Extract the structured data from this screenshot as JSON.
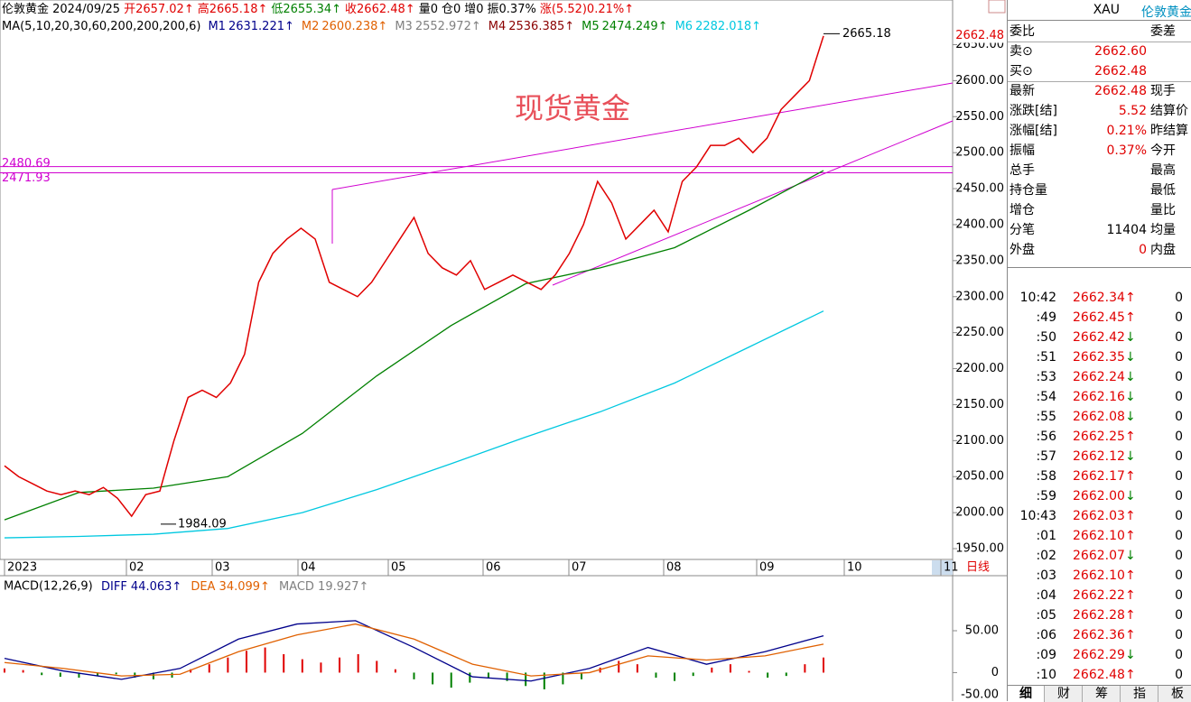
{
  "top_bar": [
    {
      "text": "伦敦黄金 2024/09/25",
      "color": "#000"
    },
    {
      "text": "开2657.02↑",
      "color": "#e00000"
    },
    {
      "text": "高2665.18↑",
      "color": "#e00000"
    },
    {
      "text": "低2655.34↑",
      "color": "#008000"
    },
    {
      "text": "收2662.48↑",
      "color": "#e00000"
    },
    {
      "text": "量0",
      "color": "#000"
    },
    {
      "text": "仓0",
      "color": "#000"
    },
    {
      "text": "增0",
      "color": "#000"
    },
    {
      "text": "振0.37%",
      "color": "#000"
    },
    {
      "text": "涨(5.52)0.21%↑",
      "color": "#e00000"
    }
  ],
  "chart_data": {
    "type": "line",
    "title": "现货黄金",
    "ma_label": "MA(5,10,20,30,60,200,200,200,6)",
    "ma": [
      {
        "name": "M1",
        "label": "2631.221↑",
        "color": "#00008b"
      },
      {
        "name": "M2",
        "label": "2600.238↑",
        "color": "#e06000"
      },
      {
        "name": "M3",
        "label": "2552.972↑",
        "color": "#808080"
      },
      {
        "name": "M4",
        "label": "2536.385↑",
        "color": "#8b0000"
      },
      {
        "name": "M5",
        "label": "2474.249↑",
        "color": "#008000",
        "values": [
          1990,
          2028,
          2034,
          2050,
          2110,
          2190,
          2260,
          2318,
          2340,
          2368,
          2420,
          2475
        ]
      },
      {
        "name": "M6",
        "label": "2282.018↑",
        "color": "#00c8e0",
        "values": [
          1965,
          1967,
          1970,
          1978,
          2000,
          2032,
          2068,
          2105,
          2140,
          2180,
          2230,
          2280
        ]
      }
    ],
    "price": {
      "color": "#e00000",
      "values": [
        2065,
        2050,
        2040,
        2030,
        2025,
        2030,
        2025,
        2035,
        2020,
        1995,
        2025,
        2030,
        2100,
        2160,
        2170,
        2160,
        2180,
        2220,
        2320,
        2360,
        2380,
        2395,
        2380,
        2320,
        2310,
        2300,
        2320,
        2350,
        2380,
        2410,
        2360,
        2340,
        2330,
        2350,
        2310,
        2320,
        2330,
        2320,
        2310,
        2330,
        2360,
        2400,
        2460,
        2430,
        2380,
        2400,
        2420,
        2390,
        2460,
        2480,
        2510,
        2510,
        2520,
        2500,
        2520,
        2560,
        2580,
        2600,
        2662
      ]
    },
    "ylim": [
      1935,
      2712
    ],
    "yticks": [
      {
        "value": 1950,
        "label": "1950.00"
      },
      {
        "value": 2000,
        "label": "2000.00"
      },
      {
        "value": 2050,
        "label": "2050.00"
      },
      {
        "value": 2100,
        "label": "2100.00"
      },
      {
        "value": 2150,
        "label": "2150.00"
      },
      {
        "value": 2200,
        "label": "2200.00"
      },
      {
        "value": 2250,
        "label": "2250.00"
      },
      {
        "value": 2300,
        "label": "2300.00"
      },
      {
        "value": 2350,
        "label": "2350.00"
      },
      {
        "value": 2400,
        "label": "2400.00"
      },
      {
        "value": 2450,
        "label": "2450.00"
      },
      {
        "value": 2500,
        "label": "2500.00"
      },
      {
        "value": 2550,
        "label": "2550.00"
      },
      {
        "value": 2600,
        "label": "2600.00"
      },
      {
        "value": 2650,
        "label": "2650.00"
      }
    ],
    "last_price": {
      "value": 2662.48,
      "label": "2662.48"
    },
    "hlines": [
      {
        "value": 2480.69,
        "label": "2480.69"
      },
      {
        "value": 2471.93,
        "label": "2471.93"
      }
    ],
    "high_note": {
      "value": 2665.18,
      "label": "2665.18"
    },
    "low_note": {
      "value": 1984.09,
      "label": "1984.09"
    },
    "categories": [
      "2023",
      "02",
      "03",
      "04",
      "05",
      "06",
      "07",
      "08",
      "09",
      "10",
      "11"
    ],
    "period": "日线"
  },
  "macd": {
    "label": "MACD(12,26,9)",
    "legend": [
      {
        "text": "DIFF 44.063↑",
        "color": "#00008b"
      },
      {
        "text": "DEA 34.099↑",
        "color": "#e06000"
      },
      {
        "text": "MACD 19.927↑",
        "color": "#808080"
      }
    ],
    "ylim": [
      -34,
      92
    ],
    "yticks": [
      {
        "value": 50,
        "label": "50.00"
      },
      {
        "value": 0,
        "label": "0"
      },
      {
        "value": -50,
        "label": "-50.00"
      }
    ],
    "up_color": "#e00000",
    "down_color": "#008000",
    "hist": [
      5,
      3,
      -3,
      -5,
      -6,
      -4,
      -2,
      -6,
      -8,
      -6,
      4,
      10,
      18,
      26,
      30,
      22,
      16,
      12,
      18,
      22,
      14,
      4,
      -8,
      -14,
      -18,
      -12,
      -6,
      -10,
      -16,
      -20,
      -14,
      -8,
      6,
      14,
      10,
      -6,
      -10,
      -4,
      6,
      10,
      2,
      -6,
      -4,
      10,
      18
    ],
    "diff": [
      17,
      2,
      -8,
      5,
      40,
      58,
      62,
      30,
      -5,
      -10,
      5,
      30,
      10,
      25,
      44
    ],
    "dea": [
      12,
      5,
      -4,
      -2,
      25,
      45,
      58,
      40,
      10,
      -4,
      0,
      20,
      15,
      20,
      34
    ]
  },
  "panel": {
    "symbol": "XAU",
    "name": "伦敦黄金",
    "rows": [
      [
        "委比",
        "",
        "委差"
      ],
      [
        "卖⊙",
        "2662.60",
        ""
      ],
      [
        "买⊙",
        "2662.48",
        ""
      ],
      [
        "最新",
        "2662.48",
        "现手"
      ],
      [
        "涨跌[结]",
        "5.52",
        "结算价"
      ],
      [
        "涨幅[结]",
        "0.21%",
        "昨结算"
      ],
      [
        "振幅",
        "0.37%",
        "今开"
      ],
      [
        "总手",
        "",
        "最高"
      ],
      [
        "持仓量",
        "",
        "最低"
      ],
      [
        "增仓",
        "",
        "量比"
      ],
      [
        "分笔",
        "11404",
        "均量"
      ],
      [
        "外盘",
        "0",
        "内盘"
      ]
    ],
    "ticks": [
      [
        "10:42",
        "2662.34",
        "↑",
        0
      ],
      [
        ":49",
        "2662.45",
        "↑",
        0
      ],
      [
        ":50",
        "2662.42",
        "↓",
        0
      ],
      [
        ":51",
        "2662.35",
        "↓",
        0
      ],
      [
        ":53",
        "2662.24",
        "↓",
        0
      ],
      [
        ":54",
        "2662.16",
        "↓",
        0
      ],
      [
        ":55",
        "2662.08",
        "↓",
        0
      ],
      [
        ":56",
        "2662.25",
        "↑",
        0
      ],
      [
        ":57",
        "2662.12",
        "↓",
        0
      ],
      [
        ":58",
        "2662.17",
        "↑",
        0
      ],
      [
        ":59",
        "2662.00",
        "↓",
        0
      ],
      [
        "10:43",
        "2662.03",
        "↑",
        0
      ],
      [
        ":01",
        "2662.10",
        "↑",
        0
      ],
      [
        ":02",
        "2662.07",
        "↓",
        0
      ],
      [
        ":03",
        "2662.10",
        "↑",
        0
      ],
      [
        ":04",
        "2662.22",
        "↑",
        0
      ],
      [
        ":05",
        "2662.28",
        "↑",
        0
      ],
      [
        ":06",
        "2662.36",
        "↑",
        0
      ],
      [
        ":09",
        "2662.29",
        "↓",
        0
      ],
      [
        ":10",
        "2662.48",
        "↑",
        0
      ]
    ],
    "tabs": [
      "细",
      "财",
      "筹",
      "指",
      "板"
    ]
  }
}
